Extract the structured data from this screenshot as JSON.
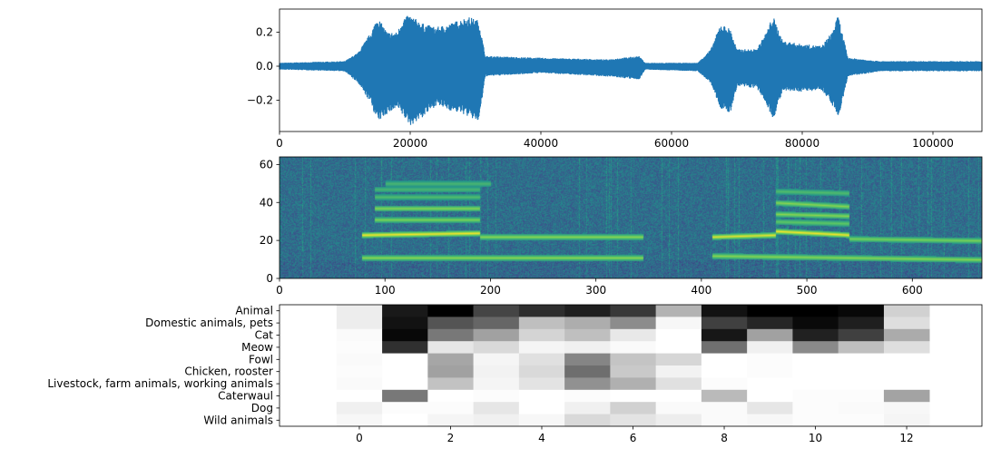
{
  "chart_data": [
    {
      "type": "line",
      "panel": "waveform",
      "color": "#1f77b4",
      "xlim": [
        0,
        107500
      ],
      "ylim": [
        -0.384,
        0.336
      ],
      "xticks": [
        0,
        20000,
        40000,
        60000,
        80000,
        100000
      ],
      "yticks": [
        -0.2,
        0.0,
        0.2
      ],
      "ytick_labels": [
        "−0.2",
        "0.0",
        "0.2"
      ],
      "envelope": {
        "x": [
          0,
          10000,
          12000,
          14000,
          15000,
          16500,
          18000,
          19000,
          20000,
          22000,
          24000,
          26000,
          28000,
          29000,
          30500,
          31500,
          40000,
          50000,
          55000,
          56000,
          64000,
          66000,
          67500,
          69000,
          70000,
          73000,
          74500,
          75500,
          77000,
          80000,
          83000,
          84500,
          85500,
          87000,
          92000,
          107500
        ],
        "upper": [
          0.02,
          0.03,
          0.08,
          0.2,
          0.29,
          0.2,
          0.2,
          0.29,
          0.3,
          0.25,
          0.23,
          0.25,
          0.28,
          0.29,
          0.27,
          0.06,
          0.05,
          0.04,
          0.06,
          0.02,
          0.02,
          0.1,
          0.25,
          0.22,
          0.1,
          0.1,
          0.2,
          0.3,
          0.15,
          0.13,
          0.12,
          0.2,
          0.3,
          0.05,
          0.03,
          0.03
        ],
        "lower": [
          -0.02,
          -0.03,
          -0.1,
          -0.22,
          -0.33,
          -0.28,
          -0.25,
          -0.3,
          -0.35,
          -0.3,
          -0.23,
          -0.26,
          -0.28,
          -0.3,
          -0.33,
          -0.06,
          -0.04,
          -0.06,
          -0.08,
          -0.02,
          -0.03,
          -0.1,
          -0.25,
          -0.28,
          -0.12,
          -0.13,
          -0.22,
          -0.32,
          -0.15,
          -0.15,
          -0.14,
          -0.22,
          -0.31,
          -0.06,
          -0.03,
          -0.03
        ]
      }
    },
    {
      "type": "heatmap",
      "panel": "spectrogram",
      "colormap": "viridis",
      "xlim": [
        0,
        666
      ],
      "ylim": [
        0,
        64
      ],
      "xticks": [
        0,
        100,
        200,
        300,
        400,
        500,
        600
      ],
      "yticks": [
        0,
        20,
        40,
        60
      ],
      "tracks": [
        {
          "x": [
            78,
            190
          ],
          "y": [
            23,
            24
          ],
          "intensity": 1.0
        },
        {
          "x": [
            190,
            345
          ],
          "y": [
            22,
            22
          ],
          "intensity": 0.7
        },
        {
          "x": [
            78,
            345
          ],
          "y": [
            11,
            11
          ],
          "intensity": 0.7
        },
        {
          "x": [
            90,
            190
          ],
          "y": [
            31,
            31
          ],
          "intensity": 0.65
        },
        {
          "x": [
            90,
            190
          ],
          "y": [
            37,
            37
          ],
          "intensity": 0.7
        },
        {
          "x": [
            90,
            190
          ],
          "y": [
            43,
            43
          ],
          "intensity": 0.45
        },
        {
          "x": [
            90,
            190
          ],
          "y": [
            47,
            47
          ],
          "intensity": 0.4
        },
        {
          "x": [
            100,
            200
          ],
          "y": [
            50,
            50
          ],
          "intensity": 0.4
        },
        {
          "x": [
            410,
            470
          ],
          "y": [
            22,
            23
          ],
          "intensity": 0.95
        },
        {
          "x": [
            470,
            540
          ],
          "y": [
            25,
            23
          ],
          "intensity": 1.0
        },
        {
          "x": [
            540,
            666
          ],
          "y": [
            21,
            20
          ],
          "intensity": 0.65
        },
        {
          "x": [
            410,
            666
          ],
          "y": [
            12,
            10
          ],
          "intensity": 0.7
        },
        {
          "x": [
            470,
            540
          ],
          "y": [
            30,
            29
          ],
          "intensity": 0.55
        },
        {
          "x": [
            470,
            540
          ],
          "y": [
            34,
            33
          ],
          "intensity": 0.7
        },
        {
          "x": [
            470,
            540
          ],
          "y": [
            40,
            38
          ],
          "intensity": 0.7
        },
        {
          "x": [
            470,
            540
          ],
          "y": [
            46,
            45
          ],
          "intensity": 0.45
        }
      ]
    },
    {
      "type": "heatmap",
      "panel": "class-scores",
      "colormap": "gray_r",
      "xlim": [
        -1.75,
        13.65
      ],
      "xticks": [
        0,
        2,
        4,
        6,
        8,
        10,
        12
      ],
      "rows": [
        "Animal",
        "Domestic animals, pets",
        "Cat",
        "Meow",
        "Fowl",
        "Chicken, rooster",
        "Livestock, farm animals, working animals",
        "Caterwaul",
        "Dog",
        "Wild animals"
      ],
      "values": [
        [
          0.07,
          0.9,
          1.0,
          0.73,
          0.82,
          0.88,
          0.78,
          0.3,
          0.93,
          1.0,
          1.0,
          0.97,
          0.18
        ],
        [
          0.07,
          0.93,
          0.67,
          0.6,
          0.25,
          0.32,
          0.45,
          0.03,
          0.75,
          0.85,
          0.96,
          0.88,
          0.13
        ],
        [
          0.02,
          0.97,
          0.53,
          0.37,
          0.17,
          0.25,
          0.09,
          0.0,
          0.91,
          0.37,
          0.87,
          0.75,
          0.33
        ],
        [
          0.01,
          0.81,
          0.1,
          0.15,
          0.04,
          0.06,
          0.02,
          0.0,
          0.56,
          0.06,
          0.46,
          0.25,
          0.13
        ],
        [
          0.02,
          0.0,
          0.35,
          0.04,
          0.12,
          0.48,
          0.23,
          0.16,
          0.0,
          0.01,
          0.0,
          0.0,
          0.0
        ],
        [
          0.01,
          0.0,
          0.37,
          0.05,
          0.15,
          0.57,
          0.21,
          0.05,
          0.0,
          0.01,
          0.0,
          0.0,
          0.0
        ],
        [
          0.02,
          0.0,
          0.24,
          0.04,
          0.11,
          0.43,
          0.31,
          0.12,
          0.01,
          0.0,
          0.0,
          0.0,
          0.0
        ],
        [
          0.0,
          0.53,
          0.0,
          0.01,
          0.0,
          0.01,
          0.0,
          0.0,
          0.27,
          0.0,
          0.01,
          0.01,
          0.36
        ],
        [
          0.06,
          0.01,
          0.01,
          0.1,
          0.0,
          0.06,
          0.18,
          0.02,
          0.02,
          0.1,
          0.01,
          0.02,
          0.03
        ],
        [
          0.03,
          0.0,
          0.04,
          0.06,
          0.03,
          0.15,
          0.11,
          0.07,
          0.02,
          0.03,
          0.01,
          0.01,
          0.04
        ]
      ]
    }
  ]
}
